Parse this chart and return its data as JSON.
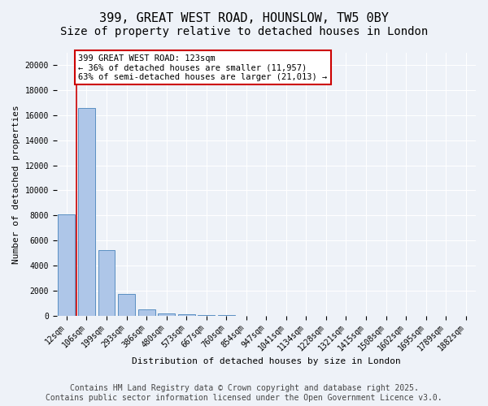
{
  "title_line1": "399, GREAT WEST ROAD, HOUNSLOW, TW5 0BY",
  "title_line2": "Size of property relative to detached houses in London",
  "xlabel": "Distribution of detached houses by size in London",
  "ylabel": "Number of detached properties",
  "bin_labels": [
    "12sqm",
    "106sqm",
    "199sqm",
    "293sqm",
    "386sqm",
    "480sqm",
    "573sqm",
    "667sqm",
    "760sqm",
    "854sqm",
    "947sqm",
    "1041sqm",
    "1134sqm",
    "1228sqm",
    "1321sqm",
    "1415sqm",
    "1508sqm",
    "1602sqm",
    "1695sqm",
    "1789sqm",
    "1882sqm"
  ],
  "bar_heights": [
    8100,
    16600,
    5200,
    1750,
    480,
    190,
    100,
    60,
    30,
    0,
    0,
    0,
    0,
    0,
    0,
    0,
    0,
    0,
    0,
    0,
    0
  ],
  "bar_color": "#aec6e8",
  "bar_edge_color": "#5a8fc2",
  "property_bin_index": 1,
  "vline_color": "#cc0000",
  "annotation_text": "399 GREAT WEST ROAD: 123sqm\n← 36% of detached houses are smaller (11,957)\n63% of semi-detached houses are larger (21,013) →",
  "annotation_box_color": "#cc0000",
  "ylim": [
    0,
    21000
  ],
  "yticks": [
    0,
    2000,
    4000,
    6000,
    8000,
    10000,
    12000,
    14000,
    16000,
    18000,
    20000
  ],
  "bg_color": "#eef2f8",
  "grid_color": "#ffffff",
  "footer_text": "Contains HM Land Registry data © Crown copyright and database right 2025.\nContains public sector information licensed under the Open Government Licence v3.0.",
  "title_fontsize": 11,
  "subtitle_fontsize": 10,
  "axis_label_fontsize": 8,
  "tick_fontsize": 7,
  "footer_fontsize": 7
}
